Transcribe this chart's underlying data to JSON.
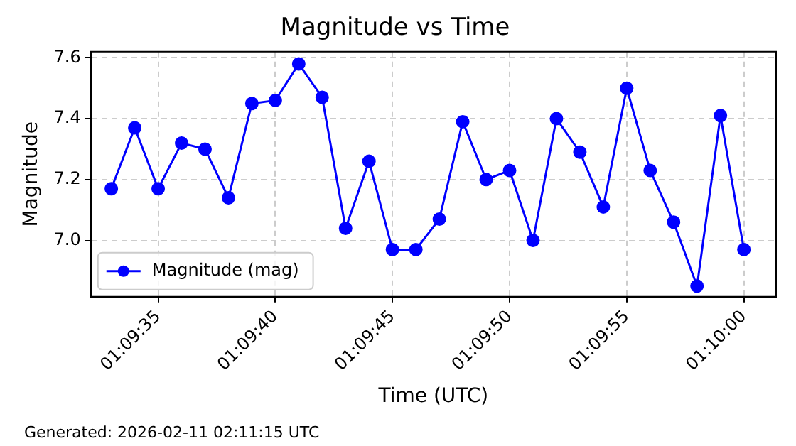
{
  "chart_data": {
    "type": "line",
    "title": "Magnitude vs Time",
    "xlabel": "Time (UTC)",
    "ylabel": "Magnitude",
    "annotations": [
      "Generated: 2026-02-11 02:11:15 UTC"
    ],
    "x": [
      1.1591667,
      1.1594444,
      1.1597222,
      1.16,
      1.1602778,
      1.1605556,
      1.1608333,
      1.1611111,
      1.1613889,
      1.1616667,
      1.1619444,
      1.1622222,
      1.1625,
      1.1627778,
      1.1630556,
      1.1633333,
      1.1636111,
      1.1638889,
      1.1641667,
      1.1644444,
      1.1647222,
      1.165,
      1.1652778,
      1.1655556,
      1.1658333,
      1.1661111,
      1.1663889,
      1.1666667
    ],
    "series": [
      {
        "name": "Magnitude (mag)",
        "color": "#0000ff",
        "values": [
          7.17,
          7.37,
          7.17,
          7.32,
          7.3,
          7.14,
          7.45,
          7.46,
          7.58,
          7.47,
          7.04,
          7.26,
          6.97,
          6.97,
          7.07,
          7.39,
          7.2,
          7.23,
          7.0,
          7.4,
          7.29,
          7.11,
          7.5,
          7.23,
          7.06,
          6.85,
          7.41,
          6.97
        ]
      }
    ],
    "xlim": [
      1.1589236,
      1.1670486
    ],
    "xticks": [
      {
        "value": 1.1597222,
        "label": "01:09:35"
      },
      {
        "value": 1.1611111,
        "label": "01:09:40"
      },
      {
        "value": 1.1625,
        "label": "01:09:45"
      },
      {
        "value": 1.1638889,
        "label": "01:09:50"
      },
      {
        "value": 1.1652778,
        "label": "01:09:55"
      },
      {
        "value": 1.1666667,
        "label": "01:10:00"
      }
    ],
    "ylim": [
      6.815,
      7.62
    ],
    "yticks": [
      {
        "value": 7,
        "label": "7.0"
      },
      {
        "value": 7.2,
        "label": "7.2"
      },
      {
        "value": 7.4,
        "label": "7.4"
      },
      {
        "value": 7.6,
        "label": "7.6"
      }
    ],
    "grid": true,
    "legend": "bottom left",
    "marker": "circle",
    "line_style": "solid"
  }
}
